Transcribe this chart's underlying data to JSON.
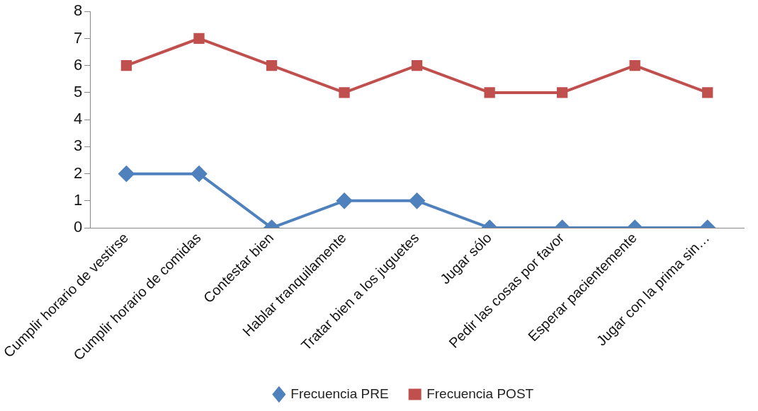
{
  "chart_data": {
    "type": "line",
    "categories": [
      "Cumplir horario de vestirse",
      "Cumplir horario de comidas",
      "Contestar bien",
      "Hablar tranquilamente",
      "Tratar bien a los juguetes",
      "Jugar sólo",
      "Pedir las cosas por favor",
      "Esperar pacientemente",
      "Jugar con la prima sin…"
    ],
    "series": [
      {
        "name": "Frecuencia PRE",
        "color": "#4f81bd",
        "marker": "diamond",
        "values": [
          2,
          2,
          0,
          1,
          1,
          0,
          0,
          0,
          0
        ]
      },
      {
        "name": "Frecuencia POST",
        "color": "#c0504d",
        "marker": "square",
        "values": [
          6,
          7,
          6,
          5,
          6,
          5,
          5,
          6,
          5
        ]
      }
    ],
    "ylim": [
      0,
      8
    ],
    "yticks": [
      0,
      1,
      2,
      3,
      4,
      5,
      6,
      7,
      8
    ],
    "grid": false,
    "legend": "bottom",
    "line_style": "solid"
  }
}
